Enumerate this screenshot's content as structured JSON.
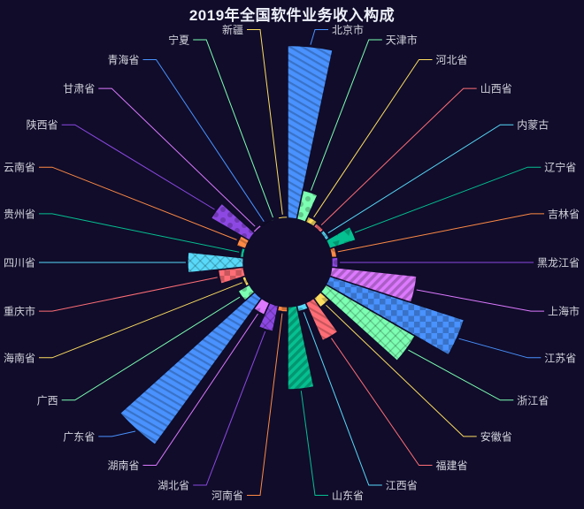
{
  "page": {
    "background_color": "#100C2A",
    "title_color": "#EEF1FA",
    "label_color": "#D3D3DC"
  },
  "chart_data": {
    "type": "pie",
    "subtype": "nightingale-rose-radius",
    "title": "2019年全国软件业务收入构成",
    "legend_position": "none",
    "grid": false,
    "start_angle_deg": 90,
    "clockwise": true,
    "sector_angle_deg": 12,
    "inner_radius_px": 50,
    "max_radius_px": 255,
    "values_are_estimates": true,
    "palette": [
      "#4992ff",
      "#7cffb2",
      "#fddd60",
      "#ff6e76",
      "#58d9f9",
      "#05c091",
      "#ff8a45",
      "#8d48e3",
      "#dd79ff"
    ],
    "decal_cycle": [
      "diagonal-stripes-30",
      "dots",
      "diagonal-stripes-135",
      "checkerboard",
      "crosshatch-45",
      "triangles-45"
    ],
    "decal_color": "rgba(0,0,0,0.22)",
    "series": [
      {
        "name": "北京市",
        "value": 12594
      },
      {
        "name": "天津市",
        "value": 2160
      },
      {
        "name": "河北省",
        "value": 460
      },
      {
        "name": "山西省",
        "value": 320
      },
      {
        "name": "内蒙古",
        "value": 300
      },
      {
        "name": "辽宁省",
        "value": 2010
      },
      {
        "name": "吉林省",
        "value": 390
      },
      {
        "name": "黑龙江省",
        "value": 460
      },
      {
        "name": "上海市",
        "value": 6240
      },
      {
        "name": "江苏省",
        "value": 10291
      },
      {
        "name": "浙江省",
        "value": 7503
      },
      {
        "name": "安徽省",
        "value": 840
      },
      {
        "name": "福建省",
        "value": 3025
      },
      {
        "name": "江西省",
        "value": 460
      },
      {
        "name": "山东省",
        "value": 6050
      },
      {
        "name": "河南省",
        "value": 390
      },
      {
        "name": "湖北省",
        "value": 1930
      },
      {
        "name": "湖南省",
        "value": 970
      },
      {
        "name": "广东省",
        "value": 13196
      },
      {
        "name": "广西",
        "value": 950
      },
      {
        "name": "海南省",
        "value": 260
      },
      {
        "name": "重庆市",
        "value": 1870
      },
      {
        "name": "四川省",
        "value": 4060
      },
      {
        "name": "贵州省",
        "value": 260
      },
      {
        "name": "云南省",
        "value": 700
      },
      {
        "name": "陕西省",
        "value": 3220
      },
      {
        "name": "甘肃省",
        "value": 190
      },
      {
        "name": "青海省",
        "value": 65
      },
      {
        "name": "宁夏",
        "value": 95
      },
      {
        "name": "新疆",
        "value": 160
      }
    ]
  }
}
